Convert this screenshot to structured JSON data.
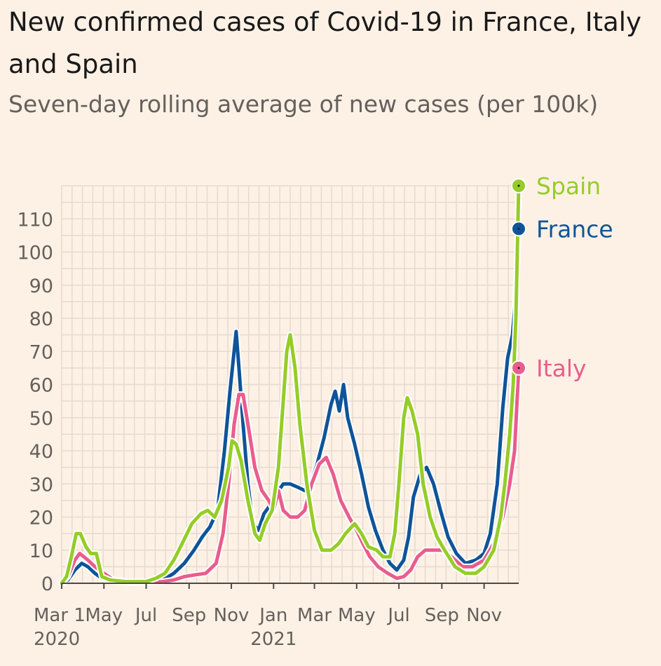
{
  "header": {
    "title": "New confirmed cases of Covid-19 in France, Italy and Spain",
    "subtitle": "Seven-day rolling average of new cases (per 100k)"
  },
  "chart_data": {
    "type": "line",
    "title": "New confirmed cases of Covid-19 in France, Italy and Spain",
    "subtitle": "Seven-day rolling average of new cases (per 100k)",
    "xlabel": "",
    "ylabel": "",
    "ylim": [
      0,
      120
    ],
    "xlim": [
      "2020-03-01",
      "2021-12-21"
    ],
    "yticks": [
      0,
      10,
      20,
      30,
      40,
      50,
      60,
      70,
      80,
      90,
      100,
      110
    ],
    "xticks": [
      {
        "date": "2020-03-01",
        "label": "Mar 1",
        "year": "2020"
      },
      {
        "date": "2020-05-01",
        "label": "May",
        "year": ""
      },
      {
        "date": "2020-07-01",
        "label": "Jul",
        "year": ""
      },
      {
        "date": "2020-09-01",
        "label": "Sep",
        "year": ""
      },
      {
        "date": "2020-11-01",
        "label": "Nov",
        "year": ""
      },
      {
        "date": "2021-01-01",
        "label": "Jan",
        "year": "2021"
      },
      {
        "date": "2021-03-01",
        "label": "Mar",
        "year": ""
      },
      {
        "date": "2021-05-01",
        "label": "May",
        "year": ""
      },
      {
        "date": "2021-07-01",
        "label": "Jul",
        "year": ""
      },
      {
        "date": "2021-09-01",
        "label": "Sep",
        "year": ""
      },
      {
        "date": "2021-11-01",
        "label": "Nov",
        "year": ""
      }
    ],
    "grid": true,
    "legend": "end-labels",
    "series": [
      {
        "name": "France",
        "color": "#0f5499",
        "end_label": "France",
        "end_value": 107,
        "points": [
          [
            "2020-03-01",
            0
          ],
          [
            "2020-03-10",
            1
          ],
          [
            "2020-03-20",
            4
          ],
          [
            "2020-03-30",
            6
          ],
          [
            "2020-04-08",
            5
          ],
          [
            "2020-04-18",
            3
          ],
          [
            "2020-04-28",
            1.5
          ],
          [
            "2020-05-15",
            0.5
          ],
          [
            "2020-06-10",
            0.2
          ],
          [
            "2020-07-01",
            0.3
          ],
          [
            "2020-07-25",
            1
          ],
          [
            "2020-08-10",
            3
          ],
          [
            "2020-08-25",
            6
          ],
          [
            "2020-09-08",
            10
          ],
          [
            "2020-09-20",
            14
          ],
          [
            "2020-10-01",
            17
          ],
          [
            "2020-10-12",
            22
          ],
          [
            "2020-10-22",
            40
          ],
          [
            "2020-10-30",
            58
          ],
          [
            "2020-11-04",
            68
          ],
          [
            "2020-11-08",
            76
          ],
          [
            "2020-11-12",
            65
          ],
          [
            "2020-11-18",
            48
          ],
          [
            "2020-11-25",
            30
          ],
          [
            "2020-12-02",
            18
          ],
          [
            "2020-12-10",
            16
          ],
          [
            "2020-12-18",
            21
          ],
          [
            "2020-12-25",
            23
          ],
          [
            "2021-01-05",
            27
          ],
          [
            "2021-01-15",
            30
          ],
          [
            "2021-01-25",
            30
          ],
          [
            "2021-02-05",
            29
          ],
          [
            "2021-02-15",
            28
          ],
          [
            "2021-02-25",
            31
          ],
          [
            "2021-03-05",
            36
          ],
          [
            "2021-03-15",
            44
          ],
          [
            "2021-03-25",
            54
          ],
          [
            "2021-03-31",
            58
          ],
          [
            "2021-04-06",
            52
          ],
          [
            "2021-04-12",
            60
          ],
          [
            "2021-04-18",
            50
          ],
          [
            "2021-04-28",
            42
          ],
          [
            "2021-05-08",
            33
          ],
          [
            "2021-05-18",
            23
          ],
          [
            "2021-05-28",
            16
          ],
          [
            "2021-06-08",
            10
          ],
          [
            "2021-06-18",
            6
          ],
          [
            "2021-06-28",
            4
          ],
          [
            "2021-07-08",
            7
          ],
          [
            "2021-07-15",
            14
          ],
          [
            "2021-07-22",
            26
          ],
          [
            "2021-08-01",
            33
          ],
          [
            "2021-08-10",
            35
          ],
          [
            "2021-08-20",
            30
          ],
          [
            "2021-08-30",
            22
          ],
          [
            "2021-09-10",
            14
          ],
          [
            "2021-09-22",
            9
          ],
          [
            "2021-10-05",
            6
          ],
          [
            "2021-10-20",
            7
          ],
          [
            "2021-11-01",
            9
          ],
          [
            "2021-11-10",
            15
          ],
          [
            "2021-11-20",
            30
          ],
          [
            "2021-11-28",
            53
          ],
          [
            "2021-12-05",
            68
          ],
          [
            "2021-12-12",
            75
          ],
          [
            "2021-12-16",
            85
          ],
          [
            "2021-12-21",
            107
          ]
        ]
      },
      {
        "name": "Italy",
        "color": "#e95d8c",
        "end_label": "Italy",
        "end_value": 65,
        "points": [
          [
            "2020-03-01",
            0
          ],
          [
            "2020-03-10",
            2
          ],
          [
            "2020-03-20",
            7
          ],
          [
            "2020-03-27",
            9
          ],
          [
            "2020-04-08",
            7
          ],
          [
            "2020-04-18",
            5
          ],
          [
            "2020-05-01",
            3
          ],
          [
            "2020-05-15",
            1
          ],
          [
            "2020-06-10",
            0.4
          ],
          [
            "2020-07-01",
            0.3
          ],
          [
            "2020-07-25",
            0.5
          ],
          [
            "2020-08-10",
            1
          ],
          [
            "2020-08-25",
            2
          ],
          [
            "2020-09-08",
            2.5
          ],
          [
            "2020-09-25",
            3
          ],
          [
            "2020-10-10",
            6
          ],
          [
            "2020-10-20",
            15
          ],
          [
            "2020-10-28",
            30
          ],
          [
            "2020-11-05",
            48
          ],
          [
            "2020-11-12",
            57
          ],
          [
            "2020-11-18",
            57
          ],
          [
            "2020-11-25",
            48
          ],
          [
            "2020-12-05",
            35
          ],
          [
            "2020-12-15",
            28
          ],
          [
            "2020-12-25",
            25
          ],
          [
            "2021-01-01",
            22
          ],
          [
            "2021-01-08",
            28
          ],
          [
            "2021-01-15",
            22
          ],
          [
            "2021-01-25",
            20
          ],
          [
            "2021-02-05",
            20
          ],
          [
            "2021-02-15",
            22
          ],
          [
            "2021-02-25",
            30
          ],
          [
            "2021-03-08",
            36
          ],
          [
            "2021-03-18",
            38
          ],
          [
            "2021-03-28",
            33
          ],
          [
            "2021-04-08",
            25
          ],
          [
            "2021-04-20",
            20
          ],
          [
            "2021-05-01",
            16
          ],
          [
            "2021-05-10",
            12
          ],
          [
            "2021-05-20",
            8
          ],
          [
            "2021-06-01",
            5
          ],
          [
            "2021-06-15",
            3
          ],
          [
            "2021-06-28",
            1.5
          ],
          [
            "2021-07-08",
            2
          ],
          [
            "2021-07-18",
            4
          ],
          [
            "2021-07-28",
            8
          ],
          [
            "2021-08-08",
            10
          ],
          [
            "2021-08-20",
            10
          ],
          [
            "2021-09-01",
            10
          ],
          [
            "2021-09-15",
            8
          ],
          [
            "2021-10-01",
            5
          ],
          [
            "2021-10-15",
            5
          ],
          [
            "2021-11-01",
            7
          ],
          [
            "2021-11-15",
            12
          ],
          [
            "2021-11-28",
            20
          ],
          [
            "2021-12-08",
            30
          ],
          [
            "2021-12-15",
            40
          ],
          [
            "2021-12-21",
            65
          ]
        ]
      },
      {
        "name": "Spain",
        "color": "#96cc28",
        "end_label": "Spain",
        "end_value": 120,
        "points": [
          [
            "2020-03-01",
            0
          ],
          [
            "2020-03-08",
            2
          ],
          [
            "2020-03-15",
            8
          ],
          [
            "2020-03-22",
            15
          ],
          [
            "2020-03-28",
            15
          ],
          [
            "2020-04-05",
            11
          ],
          [
            "2020-04-12",
            9
          ],
          [
            "2020-04-20",
            9
          ],
          [
            "2020-04-28",
            2
          ],
          [
            "2020-05-10",
            1
          ],
          [
            "2020-06-01",
            0.5
          ],
          [
            "2020-07-01",
            0.5
          ],
          [
            "2020-07-15",
            1.5
          ],
          [
            "2020-07-28",
            3
          ],
          [
            "2020-08-10",
            7
          ],
          [
            "2020-08-22",
            12
          ],
          [
            "2020-09-05",
            18
          ],
          [
            "2020-09-18",
            21
          ],
          [
            "2020-09-28",
            22
          ],
          [
            "2020-10-08",
            20
          ],
          [
            "2020-10-18",
            25
          ],
          [
            "2020-10-28",
            35
          ],
          [
            "2020-11-02",
            43
          ],
          [
            "2020-11-08",
            42
          ],
          [
            "2020-11-15",
            37
          ],
          [
            "2020-11-25",
            25
          ],
          [
            "2020-12-05",
            15
          ],
          [
            "2020-12-12",
            13
          ],
          [
            "2020-12-20",
            18
          ],
          [
            "2020-12-30",
            22
          ],
          [
            "2021-01-08",
            35
          ],
          [
            "2021-01-15",
            55
          ],
          [
            "2021-01-20",
            70
          ],
          [
            "2021-01-25",
            75
          ],
          [
            "2021-02-01",
            65
          ],
          [
            "2021-02-08",
            48
          ],
          [
            "2021-02-18",
            30
          ],
          [
            "2021-03-01",
            16
          ],
          [
            "2021-03-12",
            10
          ],
          [
            "2021-03-25",
            10
          ],
          [
            "2021-04-05",
            12
          ],
          [
            "2021-04-15",
            15
          ],
          [
            "2021-04-28",
            18
          ],
          [
            "2021-05-08",
            15
          ],
          [
            "2021-05-18",
            11
          ],
          [
            "2021-05-30",
            10
          ],
          [
            "2021-06-08",
            8
          ],
          [
            "2021-06-18",
            8
          ],
          [
            "2021-06-25",
            15
          ],
          [
            "2021-07-01",
            30
          ],
          [
            "2021-07-08",
            50
          ],
          [
            "2021-07-13",
            56
          ],
          [
            "2021-07-20",
            52
          ],
          [
            "2021-07-28",
            45
          ],
          [
            "2021-08-05",
            30
          ],
          [
            "2021-08-15",
            20
          ],
          [
            "2021-08-25",
            14
          ],
          [
            "2021-09-05",
            10
          ],
          [
            "2021-09-20",
            5
          ],
          [
            "2021-10-05",
            3
          ],
          [
            "2021-10-20",
            3
          ],
          [
            "2021-11-01",
            5
          ],
          [
            "2021-11-15",
            10
          ],
          [
            "2021-11-25",
            20
          ],
          [
            "2021-12-01",
            30
          ],
          [
            "2021-12-08",
            45
          ],
          [
            "2021-12-13",
            60
          ],
          [
            "2021-12-17",
            80
          ],
          [
            "2021-12-21",
            120
          ]
        ]
      }
    ]
  }
}
